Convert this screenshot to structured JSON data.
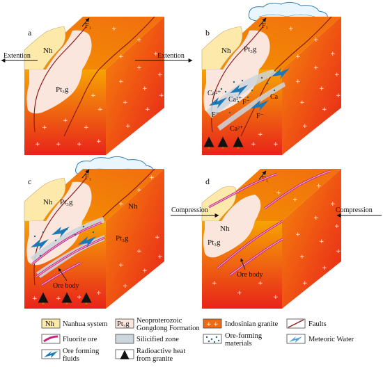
{
  "panels": {
    "a": {
      "letter": "a",
      "label_left": "Extention",
      "label_right": "Extention",
      "unit_nh": "Nh",
      "unit_pt": "Pt₃g",
      "fault_symbol": "F₁"
    },
    "b": {
      "letter": "b",
      "unit_nh": "Nh",
      "unit_pt": "Pt₃g",
      "fault_symbol": "F₁",
      "ions": [
        "Ca²⁺",
        "Ca²⁺",
        "Ca",
        "F⁻",
        "F⁻",
        "F⁻",
        "Ca²⁺"
      ]
    },
    "c": {
      "letter": "c",
      "unit_nh": "Nh",
      "unit_pt": "Pt₃g",
      "unit_nh_right": "Nh",
      "unit_pt_right": "Pt₃g",
      "fault_symbol": "F₁",
      "ore_label": "Ore body"
    },
    "d": {
      "letter": "d",
      "label_left": "Compression",
      "label_right": "Compression",
      "unit_nh": "Nh",
      "unit_pt": "Pt₃g",
      "fault_symbol": "F₁",
      "ore_label": "Ore body"
    }
  },
  "legend": {
    "nh_box": "Nh",
    "nh": "Nanhua system",
    "pt_box": "Pt₃g",
    "pt_line1": "Neoproterozoic",
    "pt_line2": "Gongdong Formation",
    "granite": "Indosinian granite",
    "faults": "Faults",
    "fluorite": "Fluorite ore",
    "silicified": "Silicified zone",
    "materials_line1": "Ore-forming",
    "materials_line2": "materials",
    "meteoric": "Meteoric Water",
    "fluids_line1": "Ore forming",
    "fluids_line2": "fluids",
    "heat_line1": "Radioactive heat",
    "heat_line2": "from granite"
  },
  "colors": {
    "granite_top": "#f7a300",
    "granite_mid": "#f06a10",
    "granite_bottom": "#e8231a",
    "nanhua": "#fde9a9",
    "gongdong": "#fbe6dd",
    "fluorite": "#c8237f",
    "silicified": "#cdd5dd",
    "meteoric": "#4fa3d9",
    "fault_line": "#8b1a1a"
  }
}
